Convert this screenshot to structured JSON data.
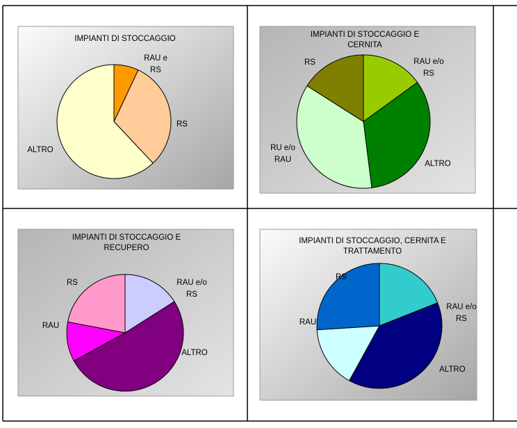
{
  "chart_data": [
    {
      "type": "pie",
      "title": [
        "IMPIANTI DI STOCCAGGIO"
      ],
      "slices": [
        {
          "label": [
            "RAU e",
            "RS"
          ],
          "value": 7,
          "color": "#FF9900"
        },
        {
          "label": [
            "RS"
          ],
          "value": 31,
          "color": "#FFCC99"
        },
        {
          "label": [
            "ALTRO"
          ],
          "value": 62,
          "color": "#FFFFCC"
        }
      ],
      "legend": false,
      "grid": false
    },
    {
      "type": "pie",
      "title": [
        "IMPIANTI DI STOCCAGGIO E",
        "CERNITA"
      ],
      "slices": [
        {
          "label": [
            "RAU e/o",
            "RS"
          ],
          "value": 15,
          "color": "#99CC00"
        },
        {
          "label": [
            "ALTRO"
          ],
          "value": 33,
          "color": "#008000"
        },
        {
          "label": [
            "RU e/o",
            "RAU"
          ],
          "value": 36,
          "color": "#CCFFCC"
        },
        {
          "label": [
            "RS"
          ],
          "value": 16,
          "color": "#808000"
        }
      ],
      "legend": false,
      "grid": false
    },
    {
      "type": "pie",
      "title": [
        "IMPIANTI DI STOCCAGGIO E",
        "RECUPERO"
      ],
      "slices": [
        {
          "label": [
            "RAU e/o",
            "RS"
          ],
          "value": 16,
          "color": "#CCCCFF"
        },
        {
          "label": [
            "ALTRO"
          ],
          "value": 51,
          "color": "#800080"
        },
        {
          "label": [
            "RAU"
          ],
          "value": 11,
          "color": "#FF00FF"
        },
        {
          "label": [
            "RS"
          ],
          "value": 22,
          "color": "#FF99CC"
        }
      ],
      "legend": false,
      "grid": false
    },
    {
      "type": "pie",
      "title": [
        "IMPIANTI DI STOCCAGGIO, CERNITA E",
        "TRATTAMENTO"
      ],
      "slices": [
        {
          "label": [
            "RAU e/o",
            "RS"
          ],
          "value": 19,
          "color": "#33CCCC"
        },
        {
          "label": [
            "ALTRO"
          ],
          "value": 39,
          "color": "#000080"
        },
        {
          "label": [
            "RAU"
          ],
          "value": 16,
          "color": "#CCFFFF"
        },
        {
          "label": [
            "RS"
          ],
          "value": 26,
          "color": "#0066CC"
        }
      ],
      "legend": false,
      "grid": false
    }
  ]
}
